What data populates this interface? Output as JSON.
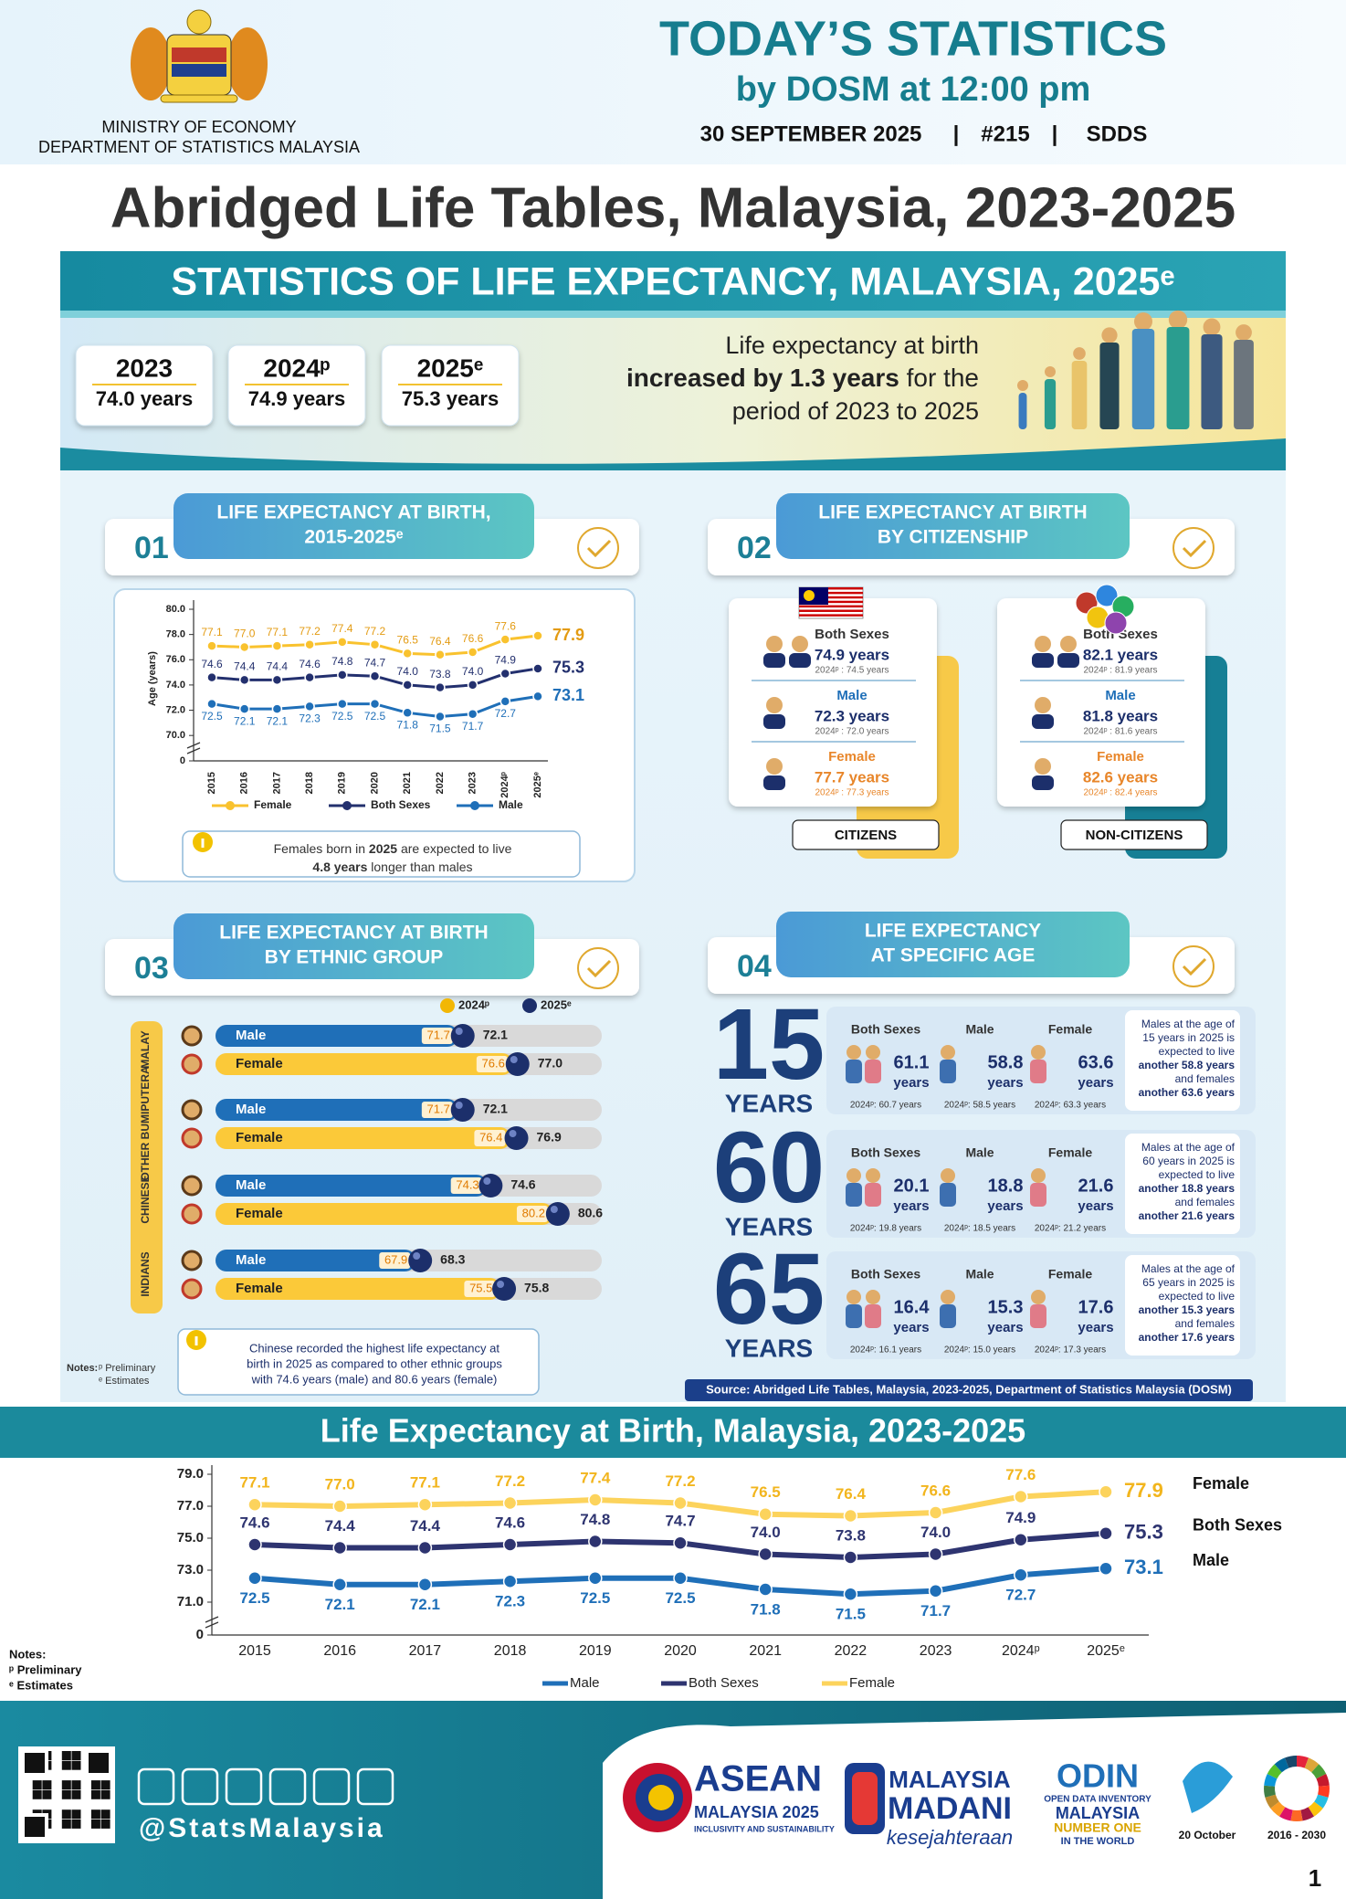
{
  "header": {
    "ministry": "MINISTRY OF ECONOMY",
    "department": "DEPARTMENT OF STATISTICS MALAYSIA",
    "title": "TODAY’S STATISTICS",
    "subtitle": "by DOSM at 12:00 pm",
    "date": "30 SEPTEMBER 2025",
    "separator": "|",
    "issue": "#215",
    "tag": "SDDS"
  },
  "page_title": "Abridged Life Tables, Malaysia, 2023-2025",
  "infographic": {
    "banner": "STATISTICS OF LIFE EXPECTANCY, MALAYSIA, 2025ᵉ",
    "summary": {
      "boxes": [
        {
          "year": "2023",
          "value": "74.0 years"
        },
        {
          "year": "2024ᵖ",
          "value": "74.9 years"
        },
        {
          "year": "2025ᵉ",
          "value": "75.3 years"
        }
      ],
      "line1": "Life expectancy at birth",
      "highlight": "increased by 1.3 years",
      "line2_rest": " for the",
      "line3": "period of 2023 to 2025"
    },
    "s01": {
      "number": "01",
      "title": [
        "LIFE EXPECTANCY AT BIRTH,",
        "2015-2025ᵉ"
      ],
      "note": {
        "a": "Females born in ",
        "b": "2025",
        "c": " are expected to live",
        "d": "4.8 years",
        "e": " longer than males"
      }
    },
    "s02": {
      "number": "02",
      "title": [
        "LIFE EXPECTANCY AT BIRTH",
        "BY CITIZENSHIP"
      ],
      "cards": [
        {
          "label": "CITIZENS",
          "rows": [
            {
              "group": "Both Sexes",
              "value": "74.9 years",
              "previous": "2024ᵖ : 74.5 years"
            },
            {
              "group": "Male",
              "value": "72.3 years",
              "previous": "2024ᵖ : 72.0 years"
            },
            {
              "group": "Female",
              "value": "77.7 years",
              "previous": "2024ᵖ : 77.3 years"
            }
          ]
        },
        {
          "label": "NON-CITIZENS",
          "rows": [
            {
              "group": "Both Sexes",
              "value": "82.1 years",
              "previous": "2024ᵖ : 81.9 years"
            },
            {
              "group": "Male",
              "value": "81.8 years",
              "previous": "2024ᵖ : 81.6 years"
            },
            {
              "group": "Female",
              "value": "82.6 years",
              "previous": "2024ᵖ : 82.4 years"
            }
          ]
        }
      ]
    },
    "s03": {
      "number": "03",
      "title": [
        "LIFE EXPECTANCY AT BIRTH",
        "BY ETHNIC GROUP"
      ],
      "legend": [
        "2024ᵖ",
        "2025ᵉ"
      ],
      "legend_colors": [
        "#f2b705",
        "#1c2f6b"
      ],
      "xlim": [
        50,
        90
      ],
      "groups": [
        {
          "name": "MALAY",
          "rows": [
            {
              "sex": "Male",
              "values": [
                71.7,
                72.1
              ],
              "value_labels": [
                "71.7",
                "72.1"
              ]
            },
            {
              "sex": "Female",
              "values": [
                76.6,
                77.0
              ],
              "value_labels": [
                "76.6",
                "77.0"
              ]
            }
          ]
        },
        {
          "name": "OTHER BUMIPUTERA",
          "rows": [
            {
              "sex": "Male",
              "values": [
                71.7,
                72.1
              ],
              "value_labels": [
                "71.7",
                "72.1"
              ]
            },
            {
              "sex": "Female",
              "values": [
                76.4,
                76.9
              ],
              "value_labels": [
                "76.4",
                "76.9"
              ]
            }
          ]
        },
        {
          "name": "CHINESE",
          "rows": [
            {
              "sex": "Male",
              "values": [
                74.3,
                74.6
              ],
              "value_labels": [
                "74.3",
                "74.6"
              ]
            },
            {
              "sex": "Female",
              "values": [
                80.2,
                80.6
              ],
              "value_labels": [
                "80.2",
                "80.6"
              ]
            }
          ]
        },
        {
          "name": "INDIANS",
          "rows": [
            {
              "sex": "Male",
              "values": [
                67.9,
                68.3
              ],
              "value_labels": [
                "67.9",
                "68.3"
              ]
            },
            {
              "sex": "Female",
              "values": [
                75.5,
                75.8
              ],
              "value_labels": [
                "75.5",
                "75.8"
              ]
            }
          ]
        }
      ],
      "note": [
        "Chinese recorded the highest life expectancy at",
        "birth in 2025 as compared to other ethnic groups",
        "with 74.6 years (male) and 80.6 years (female)"
      ],
      "notes": [
        "Notes:",
        "ᵖ Preliminary",
        "ᵉ Estimates"
      ]
    },
    "s04": {
      "number": "04",
      "title": [
        "LIFE EXPECTANCY",
        "AT SPECIFIC AGE"
      ],
      "columns": [
        "Both Sexes",
        "Male",
        "Female"
      ],
      "unit": "years",
      "years_label": "YEARS",
      "rows": [
        {
          "age": "15",
          "values": [
            "61.1",
            "58.8",
            "63.6"
          ],
          "previous": [
            "2024ᵖ: 60.7 years",
            "2024ᵖ: 58.5 years",
            "2024ᵖ: 63.3 years"
          ],
          "note": [
            "Males at the age of",
            "15 years in 2025 is",
            "expected to live",
            "another 58.8 years",
            "and females",
            "another 63.6 years"
          ]
        },
        {
          "age": "60",
          "values": [
            "20.1",
            "18.8",
            "21.6"
          ],
          "previous": [
            "2024ᵖ: 19.8 years",
            "2024ᵖ: 18.5 years",
            "2024ᵖ: 21.2 years"
          ],
          "note": [
            "Males at the age of",
            "60 years in 2025 is",
            "expected to live",
            "another 18.8 years",
            "and females",
            "another 21.6 years"
          ]
        },
        {
          "age": "65",
          "values": [
            "16.4",
            "15.3",
            "17.6"
          ],
          "previous": [
            "2024ᵖ: 16.1 years",
            "2024ᵖ: 15.0 years",
            "2024ᵖ: 17.3 years"
          ],
          "note": [
            "Males at the age of",
            "65 years in 2025 is",
            "expected to live",
            "another 15.3 years",
            "and females",
            "another 17.6 years"
          ]
        }
      ],
      "source": "Source: Abridged Life Tables, Malaysia, 2023-2025, Department of Statistics Malaysia (DOSM)"
    }
  },
  "chart_data": [
    {
      "type": "line",
      "y_label": "Age (years)",
      "categories": [
        "2015",
        "2016",
        "2017",
        "2018",
        "2019",
        "2020",
        "2021",
        "2022",
        "2023",
        "2024ᵖ",
        "2025ᵉ"
      ],
      "series": [
        {
          "name": "Female",
          "color": "#f9c22e",
          "label_color": "#e39b12",
          "values": [
            77.1,
            77.0,
            77.1,
            77.2,
            77.4,
            77.2,
            76.5,
            76.4,
            76.6,
            77.6,
            77.9
          ],
          "value_labels": [
            "77.1",
            "77.0",
            "77.1",
            "77.2",
            "77.4",
            "77.2",
            "76.5",
            "76.4",
            "76.6",
            "77.6",
            "77.9"
          ]
        },
        {
          "name": "Both Sexes",
          "color": "#23306e",
          "label_color": "#23306e",
          "values": [
            74.6,
            74.4,
            74.4,
            74.6,
            74.8,
            74.7,
            74.0,
            73.8,
            74.0,
            74.9,
            75.3
          ],
          "value_labels": [
            "74.6",
            "74.4",
            "74.4",
            "74.6",
            "74.8",
            "74.7",
            "74.0",
            "73.8",
            "74.0",
            "74.9",
            "75.3"
          ]
        },
        {
          "name": "Male",
          "color": "#1f6fb8",
          "label_color": "#1f6fb8",
          "values": [
            72.5,
            72.1,
            72.1,
            72.3,
            72.5,
            72.5,
            71.8,
            71.5,
            71.7,
            72.7,
            73.1
          ],
          "value_labels": [
            "72.5",
            "72.1",
            "72.1",
            "72.3",
            "72.5",
            "72.5",
            "71.8",
            "71.5",
            "71.7",
            "72.7",
            "73.1"
          ]
        }
      ],
      "ylim": [
        69,
        80
      ],
      "yticks": [
        0,
        {
          "value": 70,
          "label": "70.0"
        },
        {
          "value": 72,
          "label": "72.0"
        },
        {
          "value": 74,
          "label": "74.0"
        },
        {
          "value": 76,
          "label": "76.0"
        },
        {
          "value": 78,
          "label": "78.0"
        },
        {
          "value": 80,
          "label": "80.0"
        }
      ],
      "axis_break": true
    },
    {
      "type": "line",
      "title": "Life Expectancy at Birth, Malaysia, 2023-2025",
      "categories": [
        "2015",
        "2016",
        "2017",
        "2018",
        "2019",
        "2020",
        "2021",
        "2022",
        "2023",
        "2024ᵖ",
        "2025ᵉ"
      ],
      "series": [
        {
          "name": "Female",
          "color": "#fcd35c",
          "label_color": "#f2b51d",
          "values": [
            77.1,
            77.0,
            77.1,
            77.2,
            77.4,
            77.2,
            76.5,
            76.4,
            76.6,
            77.6,
            77.9
          ],
          "value_labels": [
            "77.1",
            "77.0",
            "77.1",
            "77.2",
            "77.4",
            "77.2",
            "76.5",
            "76.4",
            "76.6",
            "77.6",
            "77.9"
          ]
        },
        {
          "name": "Both Sexes",
          "color": "#2e3470",
          "label_color": "#2e3470",
          "values": [
            74.6,
            74.4,
            74.4,
            74.6,
            74.8,
            74.7,
            74.0,
            73.8,
            74.0,
            74.9,
            75.3
          ],
          "value_labels": [
            "74.6",
            "74.4",
            "74.4",
            "74.6",
            "74.8",
            "74.7",
            "74.0",
            "73.8",
            "74.0",
            "74.9",
            "75.3"
          ]
        },
        {
          "name": "Male",
          "color": "#1f6fb8",
          "label_color": "#1f6fb8",
          "values": [
            72.5,
            72.1,
            72.1,
            72.3,
            72.5,
            72.5,
            71.8,
            71.5,
            71.7,
            72.7,
            73.1
          ],
          "value_labels": [
            "72.5",
            "72.1",
            "72.1",
            "72.3",
            "72.5",
            "72.5",
            "71.8",
            "71.5",
            "71.7",
            "72.7",
            "73.1"
          ]
        }
      ],
      "ylim": [
        70,
        79
      ],
      "yticks": [
        0,
        {
          "value": 71,
          "label": "71.0"
        },
        {
          "value": 73,
          "label": "73.0"
        },
        {
          "value": 75,
          "label": "75.0"
        },
        {
          "value": 77,
          "label": "77.0"
        },
        {
          "value": 79,
          "label": "79.0"
        }
      ],
      "axis_break": true,
      "notes": [
        "Notes:",
        "ᵖ Preliminary",
        "ᵉ Estimates"
      ]
    }
  ],
  "footer": {
    "handle": "@StatsMalaysia",
    "asean": [
      "ASEAN",
      "MALAYSIA 2025",
      "INCLUSIVITY AND SUSTAINABILITY"
    ],
    "madani": [
      "MALAYSIA",
      "MADANI",
      "kesejahteraan"
    ],
    "odin": [
      "ODIN",
      "OPEN DATA INVENTORY",
      "MALAYSIA",
      "NUMBER ONE",
      "IN THE WORLD"
    ],
    "date": "20 October",
    "sdg": "2016 - 2030",
    "page": "1"
  }
}
